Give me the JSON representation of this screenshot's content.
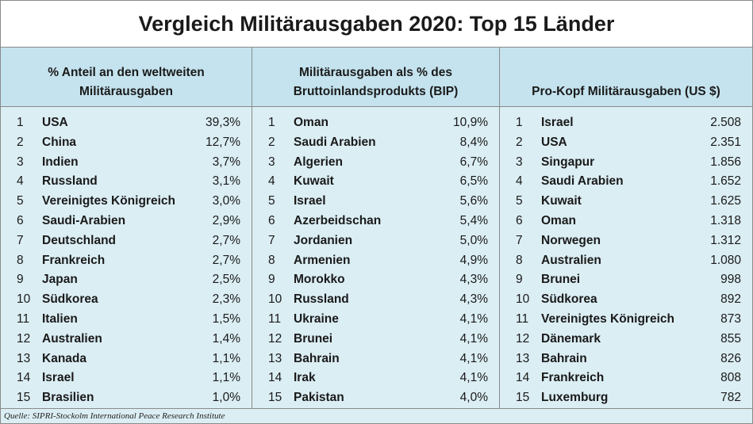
{
  "chart_data": {
    "type": "table",
    "title": "Vergleich Militärausgaben 2020: Top 15 Länder",
    "source": "Quelle: SIPRI-Stockolm International Peace Research Institute",
    "tables": [
      {
        "header_line1": "% Anteil an den weltweiten",
        "header_line2": "Militärausgaben",
        "rows": [
          {
            "rank": "1",
            "country": "USA",
            "value": "39,3%"
          },
          {
            "rank": "2",
            "country": "China",
            "value": "12,7%"
          },
          {
            "rank": "3",
            "country": "Indien",
            "value": "3,7%"
          },
          {
            "rank": "4",
            "country": "Russland",
            "value": "3,1%"
          },
          {
            "rank": "5",
            "country": "Vereinigtes Königreich",
            "value": "3,0%"
          },
          {
            "rank": "6",
            "country": "Saudi-Arabien",
            "value": "2,9%"
          },
          {
            "rank": "7",
            "country": "Deutschland",
            "value": "2,7%"
          },
          {
            "rank": "8",
            "country": "Frankreich",
            "value": "2,7%"
          },
          {
            "rank": "9",
            "country": "Japan",
            "value": "2,5%"
          },
          {
            "rank": "10",
            "country": "Südkorea",
            "value": "2,3%"
          },
          {
            "rank": "11",
            "country": "Italien",
            "value": "1,5%"
          },
          {
            "rank": "12",
            "country": "Australien",
            "value": "1,4%"
          },
          {
            "rank": "13",
            "country": "Kanada",
            "value": "1,1%"
          },
          {
            "rank": "14",
            "country": "Israel",
            "value": "1,1%"
          },
          {
            "rank": "15",
            "country": "Brasilien",
            "value": "1,0%"
          }
        ]
      },
      {
        "header_line1": "Militärausgaben als % des",
        "header_line2": "Bruttoinlandsprodukts (BIP)",
        "rows": [
          {
            "rank": "1",
            "country": "Oman",
            "value": "10,9%"
          },
          {
            "rank": "2",
            "country": "Saudi Arabien",
            "value": "8,4%"
          },
          {
            "rank": "3",
            "country": "Algerien",
            "value": "6,7%"
          },
          {
            "rank": "4",
            "country": "Kuwait",
            "value": "6,5%"
          },
          {
            "rank": "5",
            "country": "Israel",
            "value": "5,6%"
          },
          {
            "rank": "6",
            "country": "Azerbeidschan",
            "value": "5,4%"
          },
          {
            "rank": "7",
            "country": "Jordanien",
            "value": "5,0%"
          },
          {
            "rank": "8",
            "country": "Armenien",
            "value": "4,9%"
          },
          {
            "rank": "9",
            "country": "Morokko",
            "value": "4,3%"
          },
          {
            "rank": "10",
            "country": "Russland",
            "value": "4,3%"
          },
          {
            "rank": "11",
            "country": "Ukraine",
            "value": "4,1%"
          },
          {
            "rank": "12",
            "country": "Brunei",
            "value": "4,1%"
          },
          {
            "rank": "13",
            "country": "Bahrain",
            "value": "4,1%"
          },
          {
            "rank": "14",
            "country": "Irak",
            "value": "4,1%"
          },
          {
            "rank": "15",
            "country": "Pakistan",
            "value": "4,0%"
          }
        ]
      },
      {
        "header_line1": "",
        "header_line2": "Pro-Kopf Militärausgaben (US $)",
        "rows": [
          {
            "rank": "1",
            "country": "Israel",
            "value": "2.508"
          },
          {
            "rank": "2",
            "country": "USA",
            "value": "2.351"
          },
          {
            "rank": "3",
            "country": "Singapur",
            "value": "1.856"
          },
          {
            "rank": "4",
            "country": "Saudi Arabien",
            "value": "1.652"
          },
          {
            "rank": "5",
            "country": "Kuwait",
            "value": "1.625"
          },
          {
            "rank": "6",
            "country": "Oman",
            "value": "1.318"
          },
          {
            "rank": "7",
            "country": "Norwegen",
            "value": "1.312"
          },
          {
            "rank": "8",
            "country": "Australien",
            "value": "1.080"
          },
          {
            "rank": "9",
            "country": "Brunei",
            "value": "998"
          },
          {
            "rank": "10",
            "country": "Südkorea",
            "value": "892"
          },
          {
            "rank": "11",
            "country": "Vereinigtes Königreich",
            "value": "873"
          },
          {
            "rank": "12",
            "country": "Dänemark",
            "value": "855"
          },
          {
            "rank": "13",
            "country": "Bahrain",
            "value": "826"
          },
          {
            "rank": "14",
            "country": "Frankreich",
            "value": "808"
          },
          {
            "rank": "15",
            "country": "Luxemburg",
            "value": "782"
          }
        ]
      }
    ]
  }
}
